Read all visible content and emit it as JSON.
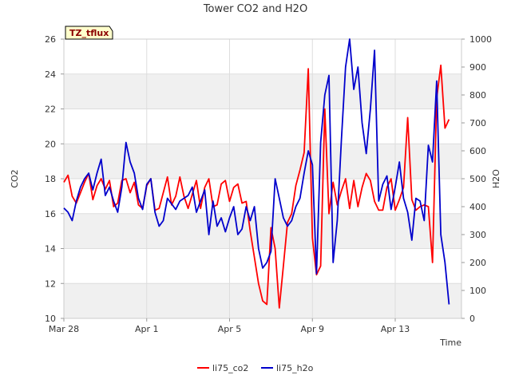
{
  "chart_data": {
    "type": "line",
    "title": "Tower CO2 and H2O",
    "site_label": "TZ_tflux",
    "xlabel": "Time",
    "ylabel_left": "CO2",
    "ylabel_right": "H2O",
    "xlim": [
      0,
      19.2
    ],
    "ylim_left": [
      10,
      26
    ],
    "ylim_right": [
      0,
      1000
    ],
    "x_ticks": [
      {
        "pos": 0,
        "label": "Mar 28"
      },
      {
        "pos": 4,
        "label": "Apr 1"
      },
      {
        "pos": 8,
        "label": "Apr 5"
      },
      {
        "pos": 12,
        "label": "Apr 9"
      },
      {
        "pos": 16,
        "label": "Apr 13"
      }
    ],
    "y_ticks_left": [
      10,
      12,
      14,
      16,
      18,
      20,
      22,
      24,
      26
    ],
    "y_ticks_right": [
      0,
      100,
      200,
      300,
      400,
      500,
      600,
      700,
      800,
      900,
      1000
    ],
    "grid": true,
    "legend_position": "bottom-center",
    "colors": {
      "li75_co2": "#ff0000",
      "li75_h2o": "#0000cc",
      "band": "#f0f0f0",
      "badge_bg": "#ffffcc"
    },
    "series": [
      {
        "name": "li75_co2",
        "axis": "left",
        "x": [
          0.0,
          0.2,
          0.4,
          0.6,
          0.8,
          1.0,
          1.2,
          1.4,
          1.6,
          1.8,
          2.0,
          2.2,
          2.4,
          2.6,
          2.8,
          3.0,
          3.2,
          3.4,
          3.6,
          3.8,
          4.0,
          4.2,
          4.4,
          4.6,
          4.8,
          5.0,
          5.2,
          5.4,
          5.6,
          5.8,
          6.0,
          6.2,
          6.4,
          6.6,
          6.8,
          7.0,
          7.2,
          7.4,
          7.6,
          7.8,
          8.0,
          8.2,
          8.4,
          8.6,
          8.8,
          9.0,
          9.2,
          9.4,
          9.6,
          9.8,
          10.0,
          10.2,
          10.4,
          10.6,
          10.8,
          11.0,
          11.2,
          11.4,
          11.6,
          11.8,
          12.0,
          12.2,
          12.4,
          12.6,
          12.8,
          13.0,
          13.2,
          13.4,
          13.6,
          13.8,
          14.0,
          14.2,
          14.4,
          14.6,
          14.8,
          15.0,
          15.2,
          15.4,
          15.6,
          15.8,
          16.0,
          16.2,
          16.4,
          16.6,
          16.8,
          17.0,
          17.2,
          17.4,
          17.6,
          17.8,
          18.0,
          18.2,
          18.4,
          18.6
        ],
        "values": [
          17.8,
          18.2,
          17.0,
          16.6,
          17.2,
          17.8,
          18.3,
          16.8,
          17.6,
          18.0,
          17.4,
          17.9,
          16.4,
          16.6,
          17.9,
          18.0,
          17.2,
          17.8,
          16.5,
          16.3,
          17.6,
          18.0,
          16.2,
          16.3,
          17.2,
          18.1,
          16.5,
          17.0,
          18.1,
          17.0,
          16.3,
          17.1,
          17.9,
          16.3,
          17.5,
          18.0,
          16.4,
          16.5,
          17.7,
          17.9,
          16.7,
          17.5,
          17.7,
          16.6,
          16.7,
          15.0,
          13.5,
          12.0,
          11.0,
          10.8,
          15.2,
          14.0,
          10.6,
          13.0,
          15.5,
          16.0,
          17.6,
          18.5,
          19.5,
          24.3,
          14.6,
          12.5,
          13.0,
          22.0,
          16.0,
          17.8,
          16.5,
          17.3,
          18.0,
          16.3,
          17.9,
          16.4,
          17.5,
          18.3,
          17.9,
          16.7,
          16.2,
          16.2,
          17.5,
          18.0,
          16.2,
          16.8,
          17.5,
          21.5,
          16.8,
          16.2,
          16.4,
          16.5,
          16.4,
          13.2,
          22.6,
          24.5,
          20.9,
          21.4
        ]
      },
      {
        "name": "li75_h2o",
        "axis": "right",
        "x": [
          0.0,
          0.2,
          0.4,
          0.6,
          0.8,
          1.0,
          1.2,
          1.4,
          1.6,
          1.8,
          2.0,
          2.2,
          2.4,
          2.6,
          2.8,
          3.0,
          3.2,
          3.4,
          3.6,
          3.8,
          4.0,
          4.2,
          4.4,
          4.6,
          4.8,
          5.0,
          5.2,
          5.4,
          5.6,
          5.8,
          6.0,
          6.2,
          6.4,
          6.6,
          6.8,
          7.0,
          7.2,
          7.4,
          7.6,
          7.8,
          8.0,
          8.2,
          8.4,
          8.6,
          8.8,
          9.0,
          9.2,
          9.4,
          9.6,
          9.8,
          10.0,
          10.2,
          10.4,
          10.6,
          10.8,
          11.0,
          11.2,
          11.4,
          11.6,
          11.8,
          12.0,
          12.2,
          12.4,
          12.6,
          12.8,
          13.0,
          13.2,
          13.4,
          13.6,
          13.8,
          14.0,
          14.2,
          14.4,
          14.6,
          14.8,
          15.0,
          15.2,
          15.4,
          15.6,
          15.8,
          16.0,
          16.2,
          16.4,
          16.6,
          16.8,
          17.0,
          17.2,
          17.4,
          17.6,
          17.8,
          18.0,
          18.2,
          18.4,
          18.6
        ],
        "values": [
          395,
          380,
          350,
          420,
          470,
          500,
          520,
          460,
          520,
          570,
          440,
          470,
          420,
          380,
          470,
          630,
          560,
          520,
          430,
          390,
          480,
          500,
          380,
          330,
          350,
          430,
          410,
          390,
          420,
          430,
          440,
          470,
          380,
          420,
          460,
          300,
          420,
          330,
          360,
          310,
          360,
          400,
          300,
          320,
          400,
          350,
          400,
          250,
          180,
          200,
          240,
          500,
          430,
          360,
          330,
          350,
          400,
          430,
          520,
          600,
          550,
          160,
          630,
          800,
          870,
          200,
          350,
          640,
          900,
          1000,
          820,
          900,
          700,
          590,
          750,
          960,
          420,
          480,
          510,
          390,
          470,
          560,
          430,
          380,
          280,
          430,
          420,
          350,
          620,
          560,
          850,
          300,
          200,
          50
        ]
      }
    ]
  },
  "legend": {
    "co2_label": "li75_co2",
    "h2o_label": "li75_h2o"
  }
}
